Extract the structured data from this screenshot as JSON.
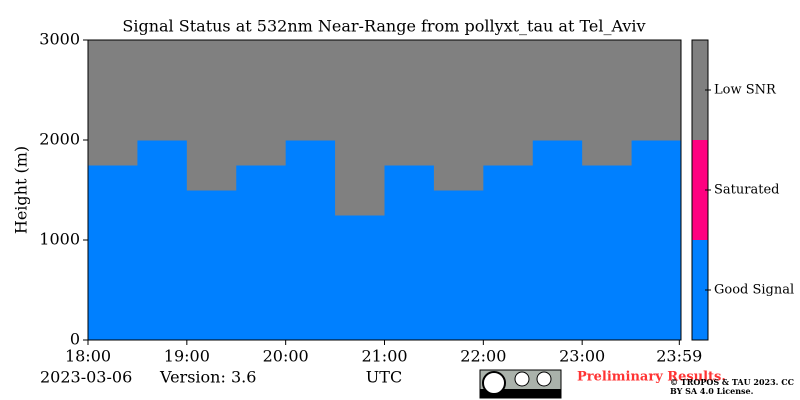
{
  "chart_data": {
    "type": "heatmap",
    "title": "Signal Status at 532nm Near-Range from pollyxt_tau at Tel_Aviv",
    "ylabel": "Height (m)",
    "xlabel": "UTC",
    "date": "2023-03-06",
    "version": "Version: 3.6",
    "note": "Preliminary Results.",
    "license": "© TROPOS & TAU 2023. CC BY SA 4.0 License.",
    "xlim": [
      18,
      24
    ],
    "xticks": [
      {
        "value": 18,
        "label": "18:00"
      },
      {
        "value": 19,
        "label": "19:00"
      },
      {
        "value": 20,
        "label": "20:00"
      },
      {
        "value": 21,
        "label": "21:00"
      },
      {
        "value": 22,
        "label": "22:00"
      },
      {
        "value": 23,
        "label": "23:00"
      },
      {
        "value": 23.983,
        "label": "23:59"
      }
    ],
    "ylim": [
      0,
      3000
    ],
    "yticks": [
      0,
      1000,
      2000,
      3000
    ],
    "x": [
      18,
      18.5,
      19,
      19.5,
      20,
      20.5,
      21,
      21.5,
      22,
      22.5,
      23,
      23.5,
      24
    ],
    "y": [
      0,
      250,
      500,
      750,
      1000,
      1250,
      1500,
      1750,
      2000,
      2250,
      2500,
      2750,
      3000
    ],
    "z": [
      [
        0,
        0,
        0,
        0,
        0,
        0,
        0,
        0,
        0,
        0,
        0,
        0
      ],
      [
        0,
        0,
        0,
        0,
        0,
        0,
        0,
        0,
        0,
        0,
        0,
        0
      ],
      [
        0,
        0,
        0,
        0,
        0,
        0,
        0,
        0,
        0,
        0,
        0,
        0
      ],
      [
        0,
        0,
        0,
        0,
        0,
        0,
        0,
        0,
        0,
        0,
        0,
        0
      ],
      [
        0,
        0,
        0,
        0,
        0,
        0,
        0,
        0,
        0,
        0,
        0,
        0
      ],
      [
        0,
        0,
        0,
        0,
        0,
        2,
        0,
        0,
        0,
        0,
        0,
        0
      ],
      [
        0,
        0,
        2,
        0,
        0,
        2,
        0,
        2,
        0,
        0,
        0,
        0
      ],
      [
        2,
        0,
        2,
        2,
        0,
        2,
        2,
        2,
        2,
        0,
        2,
        0
      ],
      [
        2,
        2,
        2,
        2,
        2,
        2,
        2,
        2,
        2,
        2,
        2,
        2
      ],
      [
        2,
        2,
        2,
        2,
        2,
        2,
        2,
        2,
        2,
        2,
        2,
        2
      ],
      [
        2,
        2,
        2,
        2,
        2,
        2,
        2,
        2,
        2,
        2,
        2,
        2
      ],
      [
        2,
        2,
        2,
        2,
        2,
        2,
        2,
        2,
        2,
        2,
        2,
        2
      ]
    ],
    "colorscale": [
      {
        "value": 0,
        "label": "Good Signal",
        "color": "#0080ff"
      },
      {
        "value": 1,
        "label": "Saturated",
        "color": "#ff0080"
      },
      {
        "value": 2,
        "label": "Low SNR",
        "color": "#808080"
      }
    ]
  }
}
